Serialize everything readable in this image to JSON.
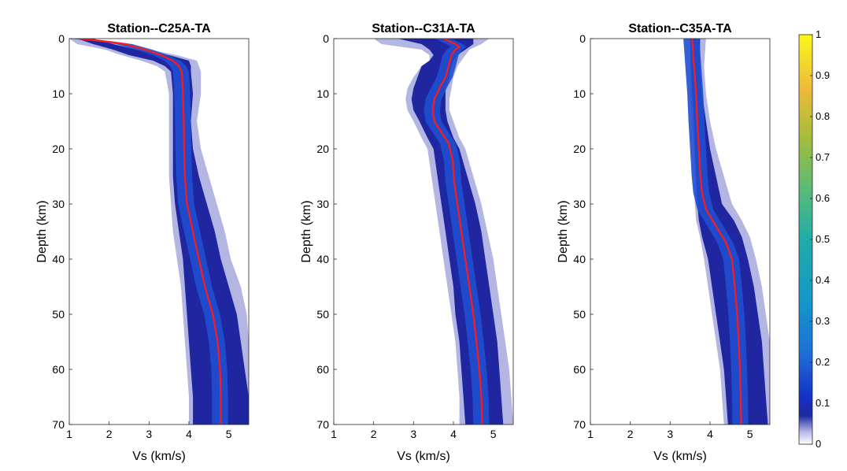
{
  "chart_data": {
    "colorbar": {
      "range": [
        0,
        1
      ],
      "ticks": [
        "0",
        "0.1",
        "0.2",
        "0.3",
        "0.4",
        "0.5",
        "0.6",
        "0.7",
        "0.8",
        "0.9",
        "1"
      ],
      "colormap": "parula"
    },
    "panels": [
      {
        "type": "heatmap",
        "title": "Station--C25A-TA",
        "xlabel": "Vs (km/s)",
        "ylabel": "Depth (km)",
        "xlim": [
          1,
          5.5
        ],
        "ylim": [
          0,
          70
        ],
        "xticks": [
          "1",
          "2",
          "3",
          "4",
          "5"
        ],
        "yticks": [
          "0",
          "10",
          "20",
          "30",
          "40",
          "50",
          "60",
          "70"
        ],
        "density_envelope": {
          "depth": [
            0,
            1,
            2,
            3,
            4,
            5,
            6,
            10,
            15,
            20,
            25,
            30,
            35,
            40,
            45,
            50,
            55,
            60,
            65,
            70
          ],
          "outer_min": [
            1.0,
            1.2,
            1.9,
            2.3,
            2.8,
            3.2,
            3.4,
            3.5,
            3.5,
            3.5,
            3.5,
            3.55,
            3.6,
            3.7,
            3.8,
            3.85,
            3.9,
            3.95,
            4.0,
            4.0
          ],
          "inner_min": [
            1.2,
            1.6,
            2.1,
            2.5,
            3.1,
            3.4,
            3.55,
            3.6,
            3.6,
            3.6,
            3.6,
            3.65,
            3.75,
            3.85,
            3.9,
            3.95,
            4.0,
            4.05,
            4.1,
            4.1
          ],
          "inner_max": [
            1.6,
            2.1,
            2.7,
            3.5,
            4.0,
            4.05,
            4.05,
            4.1,
            4.05,
            4.1,
            4.25,
            4.45,
            4.65,
            4.8,
            5.0,
            5.2,
            5.3,
            5.4,
            5.5,
            5.5
          ],
          "outer_max": [
            1.4,
            2.4,
            3.0,
            3.7,
            4.2,
            4.25,
            4.3,
            4.3,
            4.2,
            4.3,
            4.5,
            4.7,
            4.9,
            5.05,
            5.3,
            5.45,
            5.5,
            5.5,
            5.5,
            5.5
          ]
        },
        "mean_model": {
          "depth": [
            0,
            0.5,
            1,
            2,
            3,
            4,
            5,
            6,
            10,
            15,
            20,
            25,
            30,
            35,
            40,
            45,
            50,
            55,
            60,
            65,
            70
          ],
          "vs": [
            1.25,
            1.9,
            2.4,
            2.9,
            3.3,
            3.6,
            3.75,
            3.82,
            3.85,
            3.87,
            3.88,
            3.9,
            3.95,
            4.1,
            4.25,
            4.4,
            4.6,
            4.72,
            4.78,
            4.8,
            4.8
          ]
        }
      },
      {
        "type": "heatmap",
        "title": "Station--C31A-TA",
        "xlabel": "Vs (km/s)",
        "ylabel": "Depth (km)",
        "xlim": [
          1,
          5.5
        ],
        "ylim": [
          0,
          70
        ],
        "xticks": [
          "1",
          "2",
          "3",
          "4",
          "5"
        ],
        "yticks": [
          "0",
          "10",
          "20",
          "30",
          "40",
          "50",
          "60",
          "70"
        ],
        "density_envelope": {
          "depth": [
            0,
            1,
            2,
            3,
            4,
            5,
            7,
            9,
            11,
            13,
            15,
            18,
            20,
            25,
            30,
            35,
            40,
            45,
            50,
            55,
            60,
            65,
            70
          ],
          "outer_min": [
            2.0,
            2.2,
            3.2,
            3.4,
            3.4,
            3.2,
            3.0,
            2.85,
            2.8,
            2.85,
            3.0,
            3.2,
            3.35,
            3.45,
            3.55,
            3.65,
            3.75,
            3.85,
            3.95,
            4.05,
            4.1,
            4.15,
            4.15
          ],
          "inner_min": [
            2.6,
            3.2,
            3.4,
            3.5,
            3.4,
            3.2,
            3.1,
            3.0,
            2.95,
            3.0,
            3.15,
            3.35,
            3.5,
            3.6,
            3.7,
            3.8,
            3.9,
            4.0,
            4.05,
            4.15,
            4.2,
            4.25,
            4.3
          ],
          "inner_max": [
            4.5,
            4.5,
            4.3,
            4.1,
            4.0,
            3.95,
            3.9,
            3.8,
            3.8,
            3.8,
            3.85,
            4.0,
            4.15,
            4.35,
            4.55,
            4.7,
            4.8,
            4.9,
            5.0,
            5.1,
            5.15,
            5.2,
            5.25
          ],
          "outer_max": [
            4.9,
            4.7,
            4.4,
            4.3,
            4.2,
            4.1,
            4.0,
            3.95,
            3.9,
            3.9,
            4.0,
            4.15,
            4.3,
            4.5,
            4.7,
            4.85,
            5.0,
            5.1,
            5.2,
            5.3,
            5.4,
            5.45,
            5.5
          ]
        },
        "mean_model": {
          "depth": [
            0,
            0.5,
            1,
            1.5,
            2,
            3,
            5,
            7,
            9,
            11,
            13,
            15,
            17,
            19,
            22,
            26,
            30,
            35,
            40,
            45,
            50,
            55,
            60,
            65,
            70
          ],
          "vs": [
            3.75,
            3.9,
            4.05,
            4.15,
            4.05,
            3.95,
            3.88,
            3.8,
            3.65,
            3.52,
            3.48,
            3.52,
            3.7,
            3.88,
            3.98,
            4.02,
            4.1,
            4.2,
            4.3,
            4.4,
            4.5,
            4.58,
            4.65,
            4.7,
            4.72
          ]
        }
      },
      {
        "type": "heatmap",
        "title": "Station--C35A-TA",
        "xlabel": "Vs (km/s)",
        "ylabel": "Depth (km)",
        "xlim": [
          1,
          5.5
        ],
        "ylim": [
          0,
          70
        ],
        "xticks": [
          "1",
          "2",
          "3",
          "4",
          "5"
        ],
        "yticks": [
          "0",
          "10",
          "20",
          "30",
          "40",
          "50",
          "60",
          "70"
        ],
        "density_envelope": {
          "depth": [
            0,
            5,
            10,
            15,
            20,
            25,
            30,
            33,
            36,
            40,
            45,
            50,
            55,
            60,
            65,
            70
          ],
          "outer_min": [
            3.5,
            3.5,
            3.5,
            3.55,
            3.6,
            3.6,
            3.62,
            3.65,
            3.75,
            3.85,
            3.95,
            4.05,
            4.15,
            4.25,
            4.3,
            4.35
          ],
          "inner_min": [
            3.5,
            3.52,
            3.55,
            3.6,
            3.62,
            3.65,
            3.68,
            3.72,
            3.8,
            3.95,
            4.05,
            4.15,
            4.25,
            4.35,
            4.4,
            4.45
          ],
          "inner_max": [
            3.75,
            3.75,
            3.8,
            3.9,
            4.0,
            4.15,
            4.3,
            4.6,
            4.8,
            4.95,
            5.1,
            5.2,
            5.3,
            5.35,
            5.4,
            5.45
          ],
          "outer_max": [
            3.9,
            3.85,
            3.9,
            4.0,
            4.15,
            4.35,
            4.55,
            4.8,
            5.0,
            5.15,
            5.3,
            5.4,
            5.5,
            5.5,
            5.5,
            5.5
          ]
        },
        "mean_model": {
          "depth": [
            0,
            2,
            5,
            10,
            15,
            20,
            25,
            28,
            31,
            34,
            37,
            40,
            45,
            50,
            55,
            60,
            65,
            70
          ],
          "vs": [
            3.55,
            3.57,
            3.6,
            3.65,
            3.68,
            3.72,
            3.76,
            3.8,
            3.9,
            4.15,
            4.4,
            4.55,
            4.62,
            4.68,
            4.72,
            4.75,
            4.77,
            4.78
          ]
        }
      }
    ]
  }
}
